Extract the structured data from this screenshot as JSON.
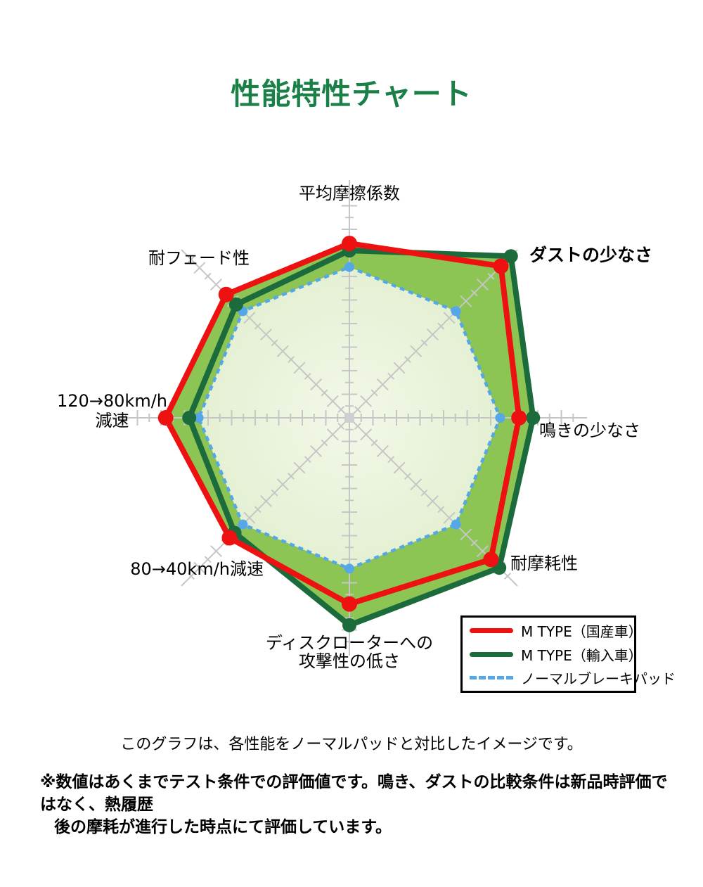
{
  "page": {
    "title": "性能特性チャート",
    "title_color": "#1b8047",
    "background": "#ffffff"
  },
  "chart_data": {
    "type": "radar",
    "title": "性能特性チャート",
    "scale": {
      "min": 0,
      "max": 10,
      "minor_tick": 0.5,
      "major_tick": 1,
      "grid": "ticks-on-spokes"
    },
    "legend_position": "bottom-right-box",
    "axes": [
      {
        "id": "avg-friction-coefficient",
        "lines": [
          "平均摩擦係数"
        ]
      },
      {
        "id": "low-dust",
        "lines": [
          "ダストの少なさ"
        ],
        "emphasis": true
      },
      {
        "id": "low-squeal",
        "lines": [
          "鳴きの少なさ"
        ]
      },
      {
        "id": "wear-resistance",
        "lines": [
          "耐摩耗性"
        ]
      },
      {
        "id": "low-rotor-attack",
        "lines": [
          "ディスクローターへの",
          "攻撃性の低さ"
        ]
      },
      {
        "id": "decel-80-40",
        "lines": [
          "80→40km/h減速"
        ]
      },
      {
        "id": "decel-120-80",
        "lines": [
          "120→80km/h",
          "減速"
        ]
      },
      {
        "id": "fade-resistance",
        "lines": [
          "耐フェード性"
        ]
      }
    ],
    "series": [
      {
        "name": "M TYPE（国産車）",
        "color": "#ee1111",
        "line_style": "solid",
        "values": [
          7.4,
          9.1,
          7.2,
          8.5,
          7.9,
          7.2,
          7.8,
          7.4
        ]
      },
      {
        "name": "M TYPE（輸入車）",
        "color": "#1c6b3c",
        "line_style": "solid",
        "values": [
          7.1,
          9.7,
          7.8,
          9.0,
          8.8,
          6.9,
          6.8,
          6.8
        ]
      },
      {
        "name": "ノーマルブレーキパッド",
        "color": "#55a7e8",
        "line_style": "dashed",
        "values": [
          6.4,
          6.4,
          6.4,
          6.4,
          6.4,
          6.4,
          6.4,
          6.4
        ]
      }
    ],
    "style_colors": {
      "axis_gray": "#c6c6c6",
      "band_fill_green": "#8cc553",
      "inner_fill_center": "#f2f8e9",
      "inner_fill_edge": "#d9e9c4",
      "center_marker": "#cfcfcf"
    }
  },
  "caption": "このグラフは、各性能をノーマルパッドと対比したイメージです。",
  "note": {
    "lines": [
      "※数値はあくまでテスト条件での評価値です。鳴き、ダストの比較条件は新品時評価ではなく、熱履歴",
      "後の摩耗が進行した時点にて評価しています。"
    ]
  }
}
